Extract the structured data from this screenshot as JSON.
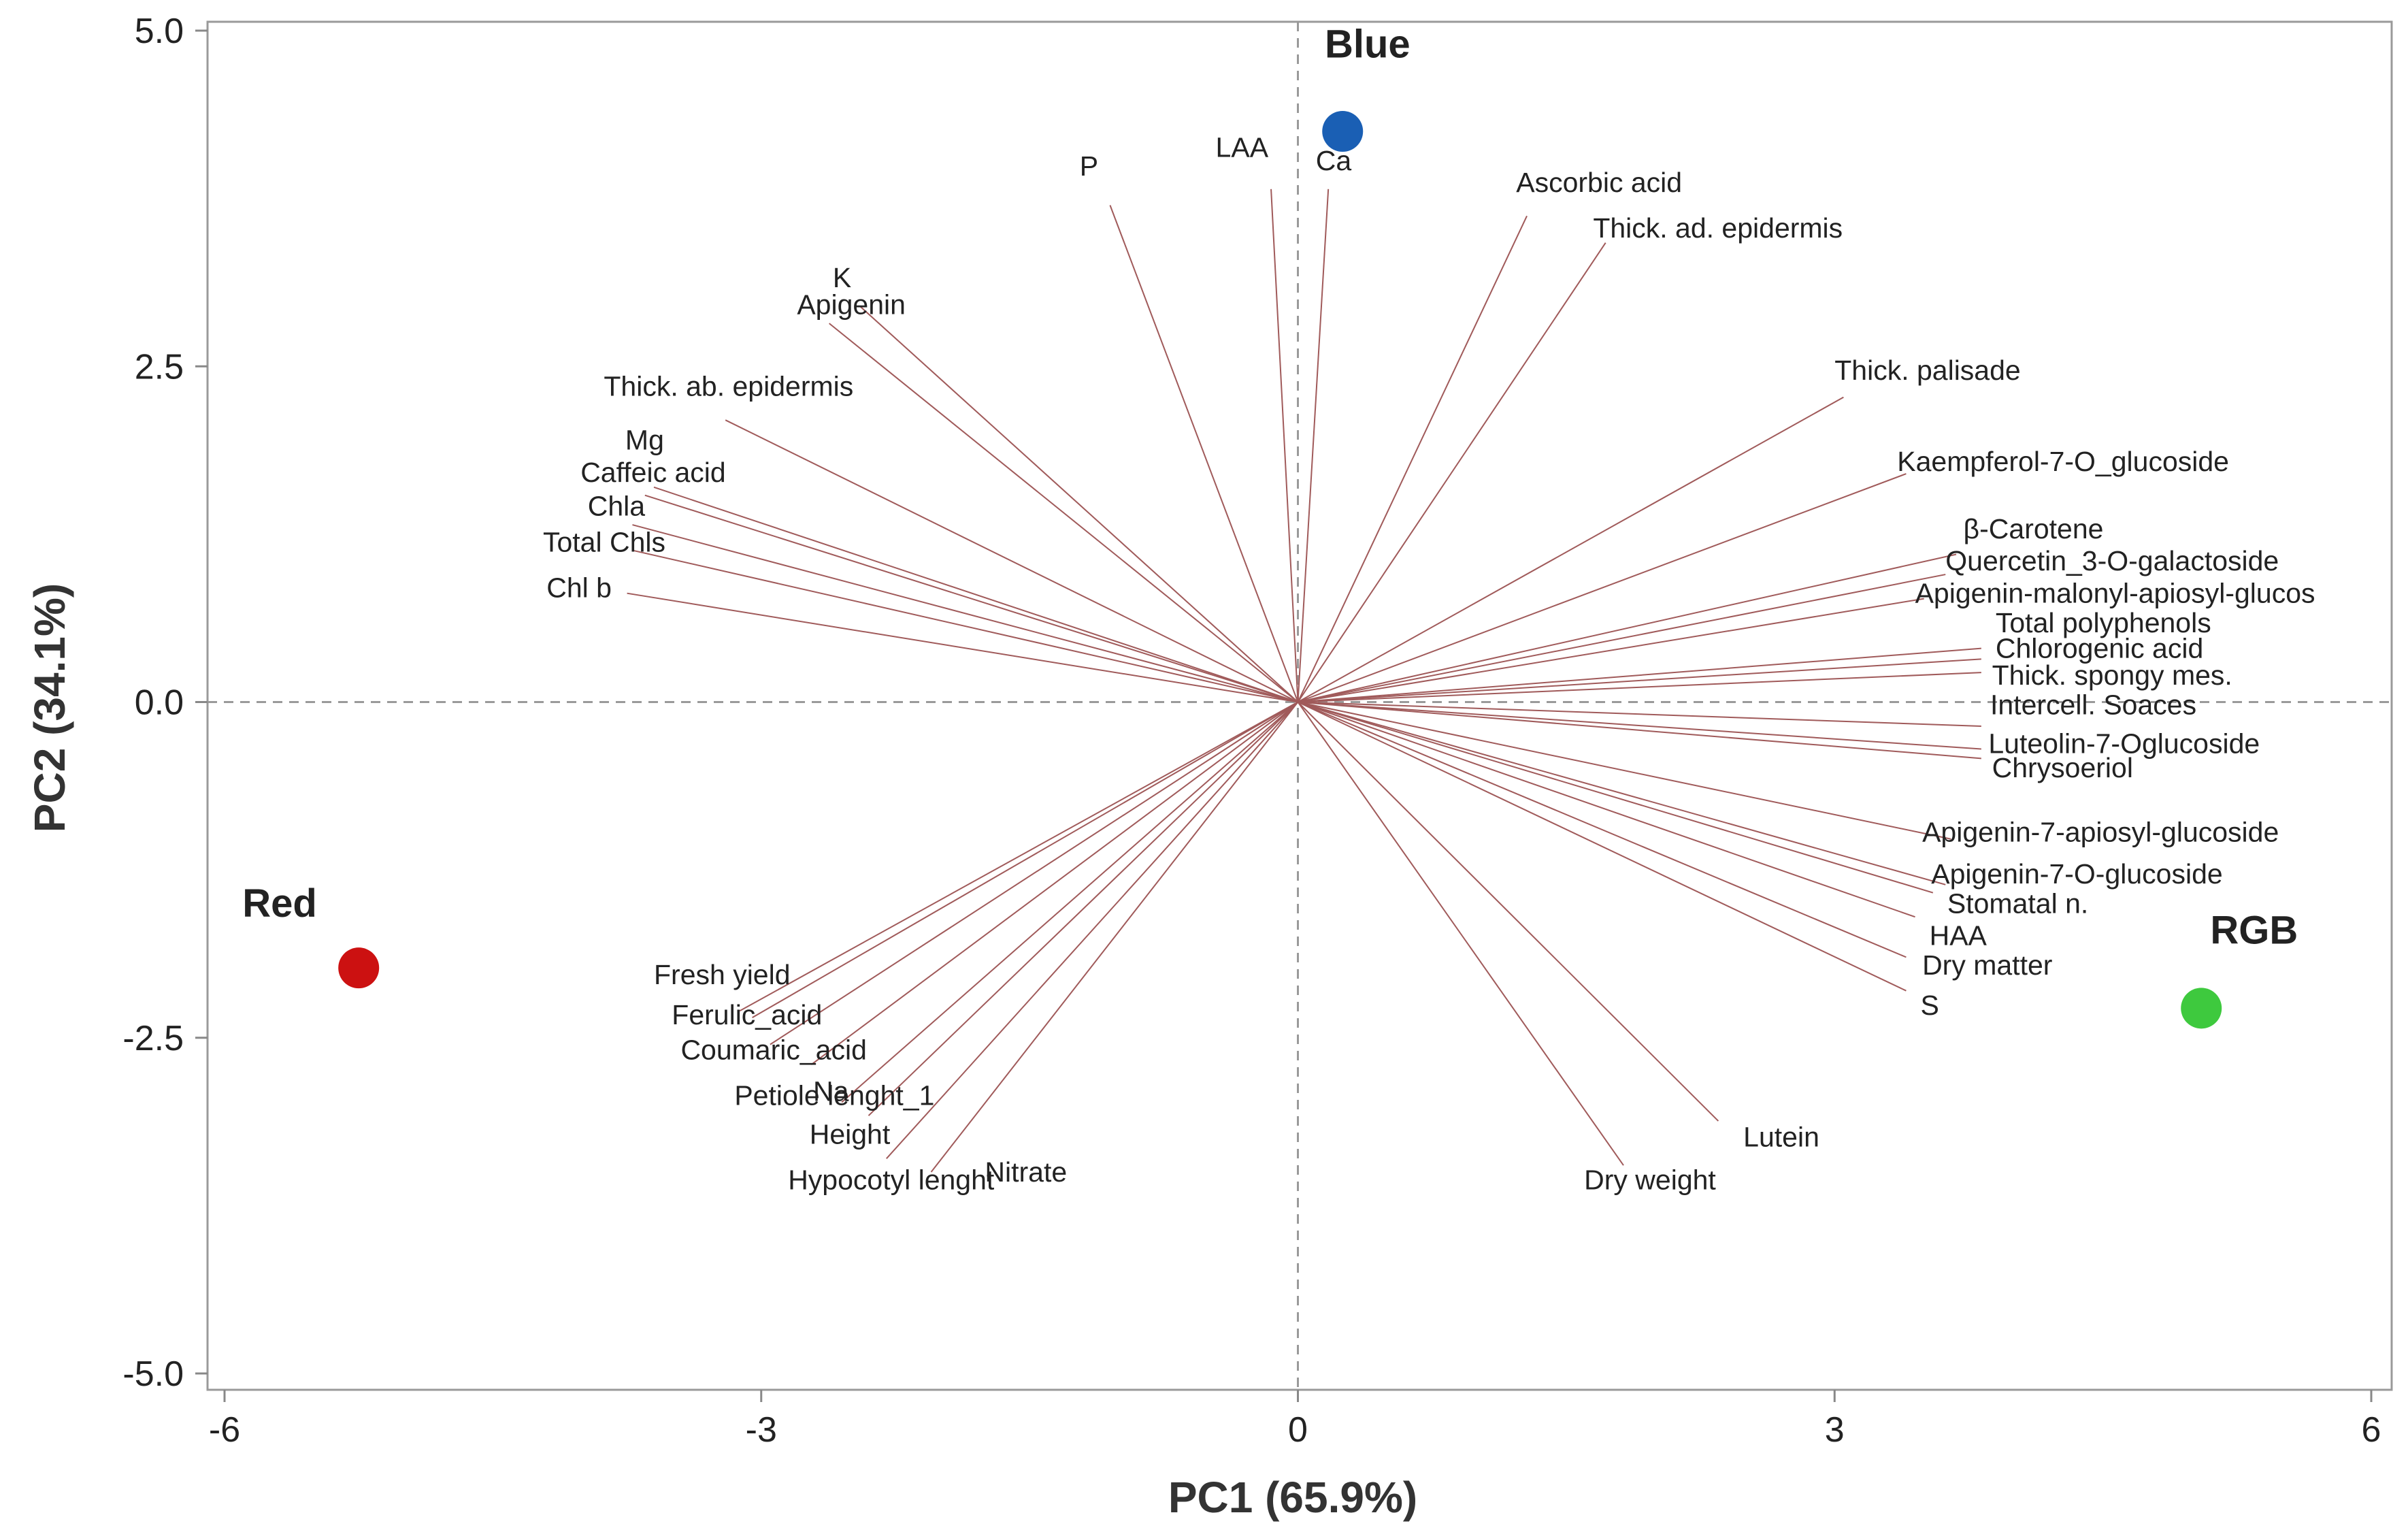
{
  "chart_data": {
    "type": "scatter",
    "title": "",
    "xlabel": "PC1 (65.9%)",
    "ylabel": "PC2 (34.1%)",
    "xlim": [
      -6,
      6
    ],
    "ylim": [
      -5,
      5
    ],
    "xticks": [
      -6,
      -3,
      0,
      3,
      6
    ],
    "yticks": [
      -5.0,
      -2.5,
      0.0,
      2.5,
      5.0
    ],
    "xtick_labels": [
      "-6",
      "-3",
      "0",
      "3",
      "6"
    ],
    "ytick_labels": [
      "-5.0",
      "-2.5",
      "0.0",
      "2.5",
      "5.0"
    ],
    "grid": false,
    "reference_lines": [
      0,
      0
    ],
    "colors": {
      "line": "#a05a5a",
      "axis": "#888888",
      "Blue": "#1a5fb4",
      "Red": "#cc1111",
      "RGB": "#3ec93e"
    },
    "groups": [
      {
        "name": "Blue",
        "x": 0.25,
        "y": 4.25,
        "label_x": 0.15,
        "label_y": 4.8
      },
      {
        "name": "Red",
        "x": -5.25,
        "y": -1.98,
        "label_x": -5.9,
        "label_y": -1.6
      },
      {
        "name": "RGB",
        "x": 5.05,
        "y": -2.28,
        "label_x": 5.1,
        "label_y": -1.8
      }
    ],
    "variables": [
      {
        "name": "P",
        "x": -1.05,
        "y": 3.7,
        "label_x": -1.22,
        "label_y": 3.92
      },
      {
        "name": "LAA",
        "x": -0.15,
        "y": 3.82,
        "label_x": -0.46,
        "label_y": 4.06
      },
      {
        "name": "Ca",
        "x": 0.17,
        "y": 3.82,
        "label_x": 0.1,
        "label_y": 3.96
      },
      {
        "name": "Ascorbic acid",
        "x": 1.28,
        "y": 3.62,
        "label_x": 1.22,
        "label_y": 3.8
      },
      {
        "name": "Thick. ad. epidermis",
        "x": 1.72,
        "y": 3.42,
        "label_x": 1.65,
        "label_y": 3.46
      },
      {
        "name": "Thick. palisade",
        "x": 3.05,
        "y": 2.27,
        "label_x": 3.0,
        "label_y": 2.4
      },
      {
        "name": "Kaempferol-7-O_glucoside",
        "x": 3.4,
        "y": 1.7,
        "label_x": 3.35,
        "label_y": 1.72
      },
      {
        "name": "β-Carotene",
        "x": 3.68,
        "y": 1.1,
        "label_x": 3.72,
        "label_y": 1.22
      },
      {
        "name": "Quercetin_3-O-galactoside",
        "x": 3.62,
        "y": 0.95,
        "label_x": 3.62,
        "label_y": 0.98
      },
      {
        "name": "Apigenin-malonyl-apiosyl-glucos",
        "x": 3.5,
        "y": 0.77,
        "label_x": 3.45,
        "label_y": 0.74
      },
      {
        "name": "Total polyphenols",
        "x": 3.82,
        "y": 0.4,
        "label_x": 3.9,
        "label_y": 0.52
      },
      {
        "name": "Chlorogenic acid",
        "x": 3.82,
        "y": 0.32,
        "label_x": 3.9,
        "label_y": 0.33
      },
      {
        "name": "Thick. spongy mes.",
        "x": 3.82,
        "y": 0.22,
        "label_x": 3.88,
        "label_y": 0.13
      },
      {
        "name": "Intercell. Soaces",
        "x": 3.82,
        "y": -0.18,
        "label_x": 3.87,
        "label_y": -0.09
      },
      {
        "name": "Luteolin-7-Oglucoside",
        "x": 3.82,
        "y": -0.35,
        "label_x": 3.86,
        "label_y": -0.38
      },
      {
        "name": "Chrysoeriol",
        "x": 3.82,
        "y": -0.42,
        "label_x": 3.88,
        "label_y": -0.56
      },
      {
        "name": "Apigenin-7-apiosyl-glucoside",
        "x": 3.65,
        "y": -1.02,
        "label_x": 3.49,
        "label_y": -1.04
      },
      {
        "name": "Apigenin-7-O-glucoside",
        "x": 3.62,
        "y": -1.36,
        "label_x": 3.54,
        "label_y": -1.35
      },
      {
        "name": "Stomatal n.",
        "x": 3.55,
        "y": -1.42,
        "label_x": 3.63,
        "label_y": -1.57
      },
      {
        "name": "HAA",
        "x": 3.45,
        "y": -1.6,
        "label_x": 3.53,
        "label_y": -1.81
      },
      {
        "name": "Dry matter",
        "x": 3.4,
        "y": -1.9,
        "label_x": 3.49,
        "label_y": -2.03
      },
      {
        "name": "S",
        "x": 3.4,
        "y": -2.15,
        "label_x": 3.48,
        "label_y": -2.33
      },
      {
        "name": "Lutein",
        "x": 2.35,
        "y": -3.12,
        "label_x": 2.49,
        "label_y": -3.31
      },
      {
        "name": "Dry weight",
        "x": 1.82,
        "y": -3.45,
        "label_x": 1.6,
        "label_y": -3.63
      },
      {
        "name": "Nitrate",
        "x": -2.05,
        "y": -3.5,
        "label_x": -1.75,
        "label_y": -3.57
      },
      {
        "name": "Hypocotyl lenght",
        "x": -2.3,
        "y": -3.4,
        "label_x": -2.85,
        "label_y": -3.63
      },
      {
        "name": "Height",
        "x": -2.4,
        "y": -3.08,
        "label_x": -2.73,
        "label_y": -3.29
      },
      {
        "name": "Na",
        "x": -2.55,
        "y": -2.98,
        "label_x": -2.71,
        "label_y": -2.97
      },
      {
        "name": "Petiole lenght_1",
        "x": -2.72,
        "y": -2.7,
        "label_x": -3.15,
        "label_y": -3.0
      },
      {
        "name": "Coumaric_acid",
        "x": -2.95,
        "y": -2.55,
        "label_x": -3.45,
        "label_y": -2.66
      },
      {
        "name": "Ferulic_acid",
        "x": -3.05,
        "y": -2.35,
        "label_x": -3.5,
        "label_y": -2.4
      },
      {
        "name": "Fresh yield",
        "x": -3.12,
        "y": -2.3,
        "label_x": -3.6,
        "label_y": -2.1
      },
      {
        "name": "Chl b",
        "x": -3.75,
        "y": 0.81,
        "label_x": -4.2,
        "label_y": 0.78
      },
      {
        "name": "Total Chls",
        "x": -3.72,
        "y": 1.13,
        "label_x": -4.22,
        "label_y": 1.12
      },
      {
        "name": "Chla",
        "x": -3.72,
        "y": 1.32,
        "label_x": -3.97,
        "label_y": 1.39
      },
      {
        "name": "Caffeic acid",
        "x": -3.65,
        "y": 1.54,
        "label_x": -4.01,
        "label_y": 1.64
      },
      {
        "name": "Mg",
        "x": -3.6,
        "y": 1.6,
        "label_x": -3.76,
        "label_y": 1.88
      },
      {
        "name": "Thick. ab. epidermis",
        "x": -3.2,
        "y": 2.1,
        "label_x": -3.88,
        "label_y": 2.28
      },
      {
        "name": "Apigenin",
        "x": -2.62,
        "y": 2.82,
        "label_x": -2.8,
        "label_y": 2.89
      },
      {
        "name": "K",
        "x": -2.45,
        "y": 2.95,
        "label_x": -2.6,
        "label_y": 3.09
      }
    ]
  }
}
